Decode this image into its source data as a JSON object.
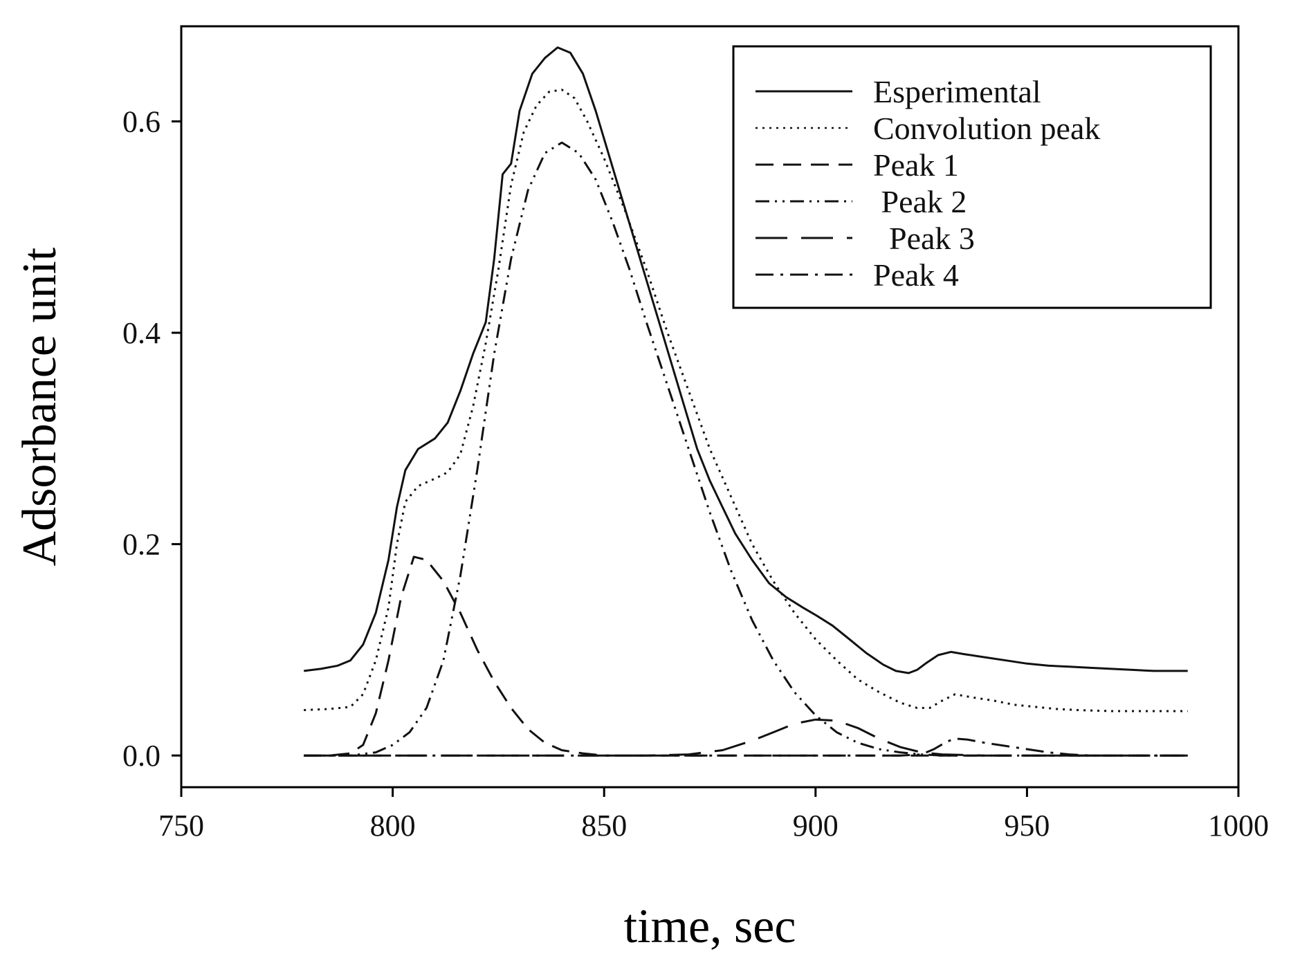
{
  "chart_data": {
    "type": "line",
    "title": "",
    "xlabel": "time, sec",
    "ylabel": "Adsorbance unit",
    "xlim": [
      750,
      1000
    ],
    "ylim": [
      -0.03,
      0.69
    ],
    "xticks": [
      750,
      800,
      850,
      900,
      950,
      1000
    ],
    "xtick_labels": [
      "750",
      "800",
      "850",
      "900",
      "950",
      "1000"
    ],
    "yticks": [
      0.0,
      0.2,
      0.4,
      0.6
    ],
    "ytick_labels": [
      "0.0",
      "0.2",
      "0.4",
      "0.6"
    ],
    "grid": false,
    "legend_position": "top-right",
    "series": [
      {
        "name": "Esperimental",
        "legend_label": "Esperimental",
        "style": "solid",
        "x": [
          779,
          783,
          787,
          790,
          793,
          796,
          799,
          801,
          803,
          806,
          810,
          813,
          816,
          819,
          822,
          824,
          826,
          828,
          830,
          833,
          836,
          839,
          842,
          845,
          848,
          851,
          854,
          857,
          860,
          863,
          866,
          869,
          872,
          875,
          878,
          881,
          885,
          889,
          893,
          897,
          900,
          904,
          908,
          912,
          916,
          919,
          922,
          924,
          926,
          929,
          932,
          935,
          940,
          945,
          950,
          955,
          960,
          965,
          970,
          975,
          980,
          988
        ],
        "y": [
          0.08,
          0.082,
          0.085,
          0.09,
          0.105,
          0.135,
          0.185,
          0.235,
          0.27,
          0.29,
          0.3,
          0.315,
          0.345,
          0.38,
          0.41,
          0.47,
          0.55,
          0.56,
          0.61,
          0.645,
          0.66,
          0.67,
          0.665,
          0.645,
          0.61,
          0.57,
          0.53,
          0.49,
          0.45,
          0.41,
          0.37,
          0.33,
          0.29,
          0.26,
          0.235,
          0.21,
          0.185,
          0.163,
          0.15,
          0.14,
          0.133,
          0.123,
          0.11,
          0.097,
          0.086,
          0.08,
          0.078,
          0.081,
          0.087,
          0.095,
          0.098,
          0.096,
          0.093,
          0.09,
          0.087,
          0.085,
          0.084,
          0.083,
          0.082,
          0.081,
          0.08,
          0.08
        ]
      },
      {
        "name": "Convolution peak",
        "legend_label": "Convolution peak",
        "style": "dotted",
        "x": [
          779,
          785,
          790,
          793,
          796,
          799,
          801,
          803,
          806,
          810,
          813,
          816,
          819,
          822,
          825,
          828,
          831,
          834,
          837,
          840,
          843,
          846,
          850,
          855,
          860,
          865,
          870,
          875,
          880,
          885,
          890,
          895,
          900,
          905,
          910,
          915,
          920,
          924,
          927,
          930,
          933,
          937,
          942,
          947,
          952,
          957,
          962,
          970,
          980,
          988
        ],
        "y": [
          0.043,
          0.044,
          0.046,
          0.058,
          0.09,
          0.14,
          0.2,
          0.24,
          0.255,
          0.262,
          0.268,
          0.285,
          0.33,
          0.39,
          0.46,
          0.54,
          0.59,
          0.615,
          0.628,
          0.63,
          0.622,
          0.6,
          0.565,
          0.515,
          0.46,
          0.4,
          0.345,
          0.29,
          0.245,
          0.2,
          0.165,
          0.135,
          0.11,
          0.09,
          0.072,
          0.06,
          0.05,
          0.045,
          0.045,
          0.052,
          0.058,
          0.055,
          0.052,
          0.048,
          0.046,
          0.044,
          0.043,
          0.042,
          0.042,
          0.042
        ]
      },
      {
        "name": "Peak 1",
        "legend_label": "Peak 1",
        "style": "dashed",
        "x": [
          779,
          785,
          790,
          793,
          796,
          799,
          802,
          805,
          808,
          812,
          816,
          820,
          824,
          828,
          832,
          836,
          840,
          845,
          850,
          860,
          880,
          900,
          950,
          988
        ],
        "y": [
          0.0,
          0.0,
          0.002,
          0.01,
          0.04,
          0.09,
          0.15,
          0.188,
          0.185,
          0.165,
          0.135,
          0.1,
          0.07,
          0.045,
          0.025,
          0.012,
          0.005,
          0.002,
          0.0,
          0.0,
          0.0,
          0.0,
          0.0,
          0.0
        ]
      },
      {
        "name": "Peak 2",
        "legend_label": " Peak 2",
        "style": "dash-dot-dot",
        "x": [
          779,
          790,
          796,
          800,
          804,
          808,
          812,
          816,
          820,
          824,
          828,
          832,
          836,
          840,
          844,
          848,
          852,
          856,
          860,
          865,
          870,
          875,
          880,
          885,
          890,
          895,
          900,
          905,
          910,
          915,
          920,
          925,
          930,
          935,
          945,
          960,
          988
        ],
        "y": [
          0.0,
          0.0,
          0.003,
          0.01,
          0.022,
          0.045,
          0.09,
          0.17,
          0.27,
          0.38,
          0.47,
          0.535,
          0.57,
          0.58,
          0.57,
          0.545,
          0.505,
          0.46,
          0.41,
          0.35,
          0.29,
          0.23,
          0.175,
          0.128,
          0.09,
          0.06,
          0.038,
          0.022,
          0.012,
          0.006,
          0.003,
          0.001,
          0.0,
          0.0,
          0.0,
          0.0,
          0.0
        ]
      },
      {
        "name": "Peak 3",
        "legend_label": "  Peak 3",
        "style": "long-dash",
        "x": [
          779,
          850,
          860,
          870,
          878,
          885,
          890,
          895,
          900,
          905,
          910,
          915,
          920,
          925,
          930,
          940,
          988
        ],
        "y": [
          0.0,
          0.0,
          0.0,
          0.001,
          0.005,
          0.014,
          0.022,
          0.03,
          0.034,
          0.033,
          0.026,
          0.016,
          0.008,
          0.003,
          0.001,
          0.0,
          0.0
        ]
      },
      {
        "name": "Peak 4",
        "legend_label": "Peak 4",
        "style": "dash-dot",
        "x": [
          779,
          920,
          925,
          928,
          931,
          933,
          936,
          940,
          945,
          950,
          955,
          960,
          965,
          970,
          988
        ],
        "y": [
          0.0,
          0.0,
          0.001,
          0.006,
          0.013,
          0.016,
          0.015,
          0.012,
          0.009,
          0.006,
          0.003,
          0.001,
          0.0,
          0.0,
          0.0
        ]
      }
    ]
  }
}
